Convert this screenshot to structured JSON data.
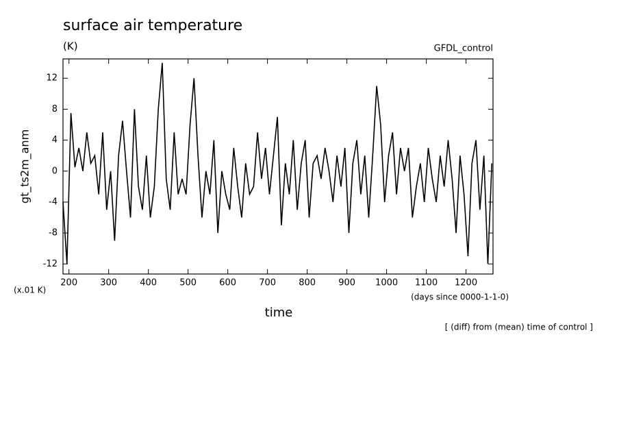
{
  "chart_data": {
    "type": "line",
    "title": "surface air temperature",
    "subtitle": "(K)",
    "annotation_right": "GFDL_control",
    "ylabel": "gt_ts2m_anm",
    "xlabel": "time",
    "y_scale_note": "(x.01 K)",
    "x_unit_note": "(days since 0000-1-1-0)",
    "footnote": "[ (diff) from (mean) time of control ]",
    "xlim": [
      185,
      1268
    ],
    "ylim": [
      -13.3,
      14.5
    ],
    "xticks": [
      200,
      300,
      400,
      500,
      600,
      700,
      800,
      900,
      1000,
      1100,
      1200
    ],
    "yticks": [
      -12,
      -8,
      -4,
      0,
      4,
      8,
      12
    ],
    "x": [
      185,
      195,
      205,
      215,
      225,
      235,
      245,
      255,
      265,
      275,
      285,
      295,
      305,
      315,
      325,
      335,
      345,
      355,
      365,
      375,
      385,
      395,
      405,
      415,
      425,
      435,
      445,
      455,
      465,
      475,
      485,
      495,
      505,
      515,
      525,
      535,
      545,
      555,
      565,
      575,
      585,
      595,
      605,
      615,
      625,
      635,
      645,
      655,
      665,
      675,
      685,
      695,
      705,
      715,
      725,
      735,
      745,
      755,
      765,
      775,
      785,
      795,
      805,
      815,
      825,
      835,
      845,
      855,
      865,
      875,
      885,
      895,
      905,
      915,
      925,
      935,
      945,
      955,
      965,
      975,
      985,
      995,
      1005,
      1015,
      1025,
      1035,
      1045,
      1055,
      1065,
      1075,
      1085,
      1095,
      1105,
      1115,
      1125,
      1135,
      1145,
      1155,
      1165,
      1175,
      1185,
      1195,
      1205,
      1215,
      1225,
      1235,
      1245,
      1255,
      1265
    ],
    "series": [
      {
        "name": "gt_ts2m_anm",
        "color": "#000000",
        "values": [
          -4,
          -12,
          7.5,
          0.5,
          3,
          0,
          5,
          1,
          2,
          -3,
          5,
          -5,
          0,
          -9,
          2,
          6.5,
          0,
          -6,
          8,
          -2,
          -5,
          2,
          -6,
          -2,
          8,
          14,
          -1,
          -5,
          5,
          -3,
          -1,
          -3,
          6,
          12,
          2,
          -6,
          0,
          -3,
          4,
          -8,
          0,
          -3,
          -5,
          3,
          -2,
          -6,
          1,
          -3,
          -2,
          5,
          -1,
          3,
          -3,
          2,
          7,
          -7,
          1,
          -3,
          4,
          -5,
          1,
          4,
          -6,
          1,
          2,
          -1,
          3,
          0,
          -4,
          2,
          -2,
          3,
          -8,
          1,
          4,
          -3,
          2,
          -6,
          2,
          11,
          6,
          -4,
          2,
          5,
          -3,
          3,
          0,
          3,
          -6,
          -2,
          1,
          -4,
          3,
          -1,
          -4,
          2,
          -2,
          4,
          -1,
          -8,
          2,
          -3,
          -11,
          1,
          4,
          -5,
          2,
          -12,
          1
        ]
      }
    ]
  }
}
